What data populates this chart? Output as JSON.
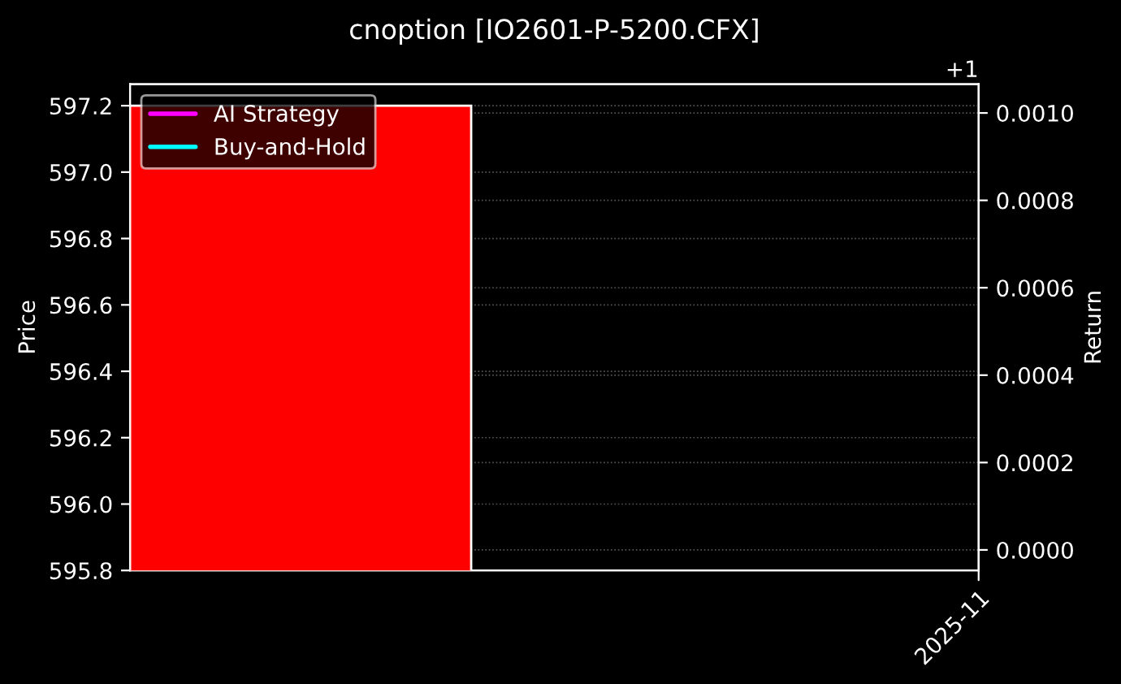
{
  "chart_data": {
    "type": "bar",
    "title": "cnoption [IO2601-P-5200.CFX]",
    "ylabel": "Price",
    "y2label": "Return",
    "categories": [
      null
    ],
    "values": [
      597.2
    ],
    "colors": [
      "#ff0000"
    ],
    "series": [
      {
        "name": "AI Strategy",
        "type": "line",
        "color": "#ff00ff",
        "values": [
          null
        ]
      },
      {
        "name": "Buy-and-Hold",
        "type": "line",
        "color": "#00ffff",
        "values": [
          null
        ]
      }
    ],
    "ylim": [
      595.8,
      597.265
    ],
    "yticks": [
      {
        "value": 595.8,
        "label": "595.8"
      },
      {
        "value": 596.0,
        "label": "596.0"
      },
      {
        "value": 596.2,
        "label": "596.2"
      },
      {
        "value": 596.4,
        "label": "596.4"
      },
      {
        "value": 596.6,
        "label": "596.6"
      },
      {
        "value": 596.8,
        "label": "596.8"
      },
      {
        "value": 597.0,
        "label": "597.0"
      },
      {
        "value": 597.2,
        "label": "597.2"
      }
    ],
    "y2lim": [
      -4.7e-05,
      0.001066
    ],
    "y2ticks": [
      {
        "value": 0.0,
        "label": "0.0000"
      },
      {
        "value": 0.0002,
        "label": "0.0002"
      },
      {
        "value": 0.0004,
        "label": "0.0004"
      },
      {
        "value": 0.0006,
        "label": "0.0006"
      },
      {
        "value": 0.0008,
        "label": "0.0008"
      },
      {
        "value": 0.001,
        "label": "0.0010"
      }
    ],
    "annotations": [
      "+1",
      "2025-11"
    ],
    "grid": "y",
    "legend": "top left",
    "line_style": "solid"
  }
}
